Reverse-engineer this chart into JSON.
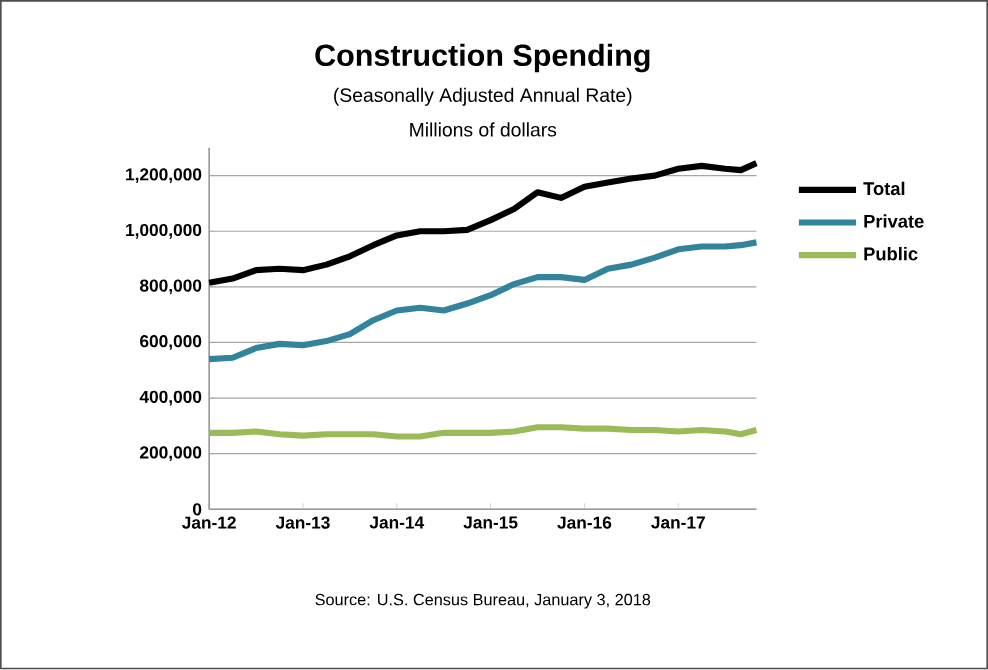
{
  "chart_data": {
    "type": "line",
    "title": "Construction Spending",
    "subtitle": "(Seasonally Adjusted Annual Rate)",
    "ylabel": "Millions  of dollars",
    "x": [
      "2012-01",
      "2012-04",
      "2012-07",
      "2012-10",
      "2013-01",
      "2013-04",
      "2013-07",
      "2013-10",
      "2014-01",
      "2014-04",
      "2014-07",
      "2014-10",
      "2015-01",
      "2015-04",
      "2015-07",
      "2015-10",
      "2016-01",
      "2016-04",
      "2016-07",
      "2016-10",
      "2017-01",
      "2017-04",
      "2017-07",
      "2017-09",
      "2017-11"
    ],
    "series": [
      {
        "name": "Total",
        "color": "#000000",
        "values": [
          815000,
          830000,
          860000,
          865000,
          860000,
          880000,
          910000,
          950000,
          985000,
          1000000,
          1000000,
          1005000,
          1040000,
          1080000,
          1140000,
          1120000,
          1160000,
          1175000,
          1190000,
          1200000,
          1225000,
          1235000,
          1225000,
          1220000,
          1245000
        ]
      },
      {
        "name": "Private",
        "color": "#31849b",
        "values": [
          540000,
          545000,
          580000,
          595000,
          590000,
          605000,
          630000,
          680000,
          715000,
          725000,
          715000,
          740000,
          770000,
          810000,
          835000,
          835000,
          825000,
          865000,
          880000,
          905000,
          935000,
          945000,
          945000,
          950000,
          960000
        ]
      },
      {
        "name": "Public",
        "color": "#9bbb59",
        "values": [
          275000,
          275000,
          280000,
          270000,
          265000,
          270000,
          270000,
          270000,
          262000,
          262000,
          275000,
          275000,
          275000,
          280000,
          295000,
          295000,
          290000,
          290000,
          285000,
          285000,
          280000,
          285000,
          280000,
          270000,
          285000
        ]
      }
    ],
    "xlim": [
      "2012-01",
      "2017-11"
    ],
    "xticks": [
      {
        "value": "2012-01",
        "label": "Jan-12"
      },
      {
        "value": "2013-01",
        "label": "Jan-13"
      },
      {
        "value": "2014-01",
        "label": "Jan-14"
      },
      {
        "value": "2015-01",
        "label": "Jan-15"
      },
      {
        "value": "2016-01",
        "label": "Jan-16"
      },
      {
        "value": "2017-01",
        "label": "Jan-17"
      }
    ],
    "ylim": [
      0,
      1300000
    ],
    "yticks": [
      {
        "value": 0,
        "label": "0"
      },
      {
        "value": 200000,
        "label": "200,000"
      },
      {
        "value": 400000,
        "label": "400,000"
      },
      {
        "value": 600000,
        "label": "600,000"
      },
      {
        "value": 800000,
        "label": "800,000"
      },
      {
        "value": 1000000,
        "label": "1,000,000"
      },
      {
        "value": 1200000,
        "label": "1,200,000"
      }
    ],
    "grid": "y",
    "legend": "right",
    "marker": "none",
    "line_style": "solid",
    "annotations": [
      "Source: U.S. Census Bureau, January 3, 2018"
    ]
  }
}
